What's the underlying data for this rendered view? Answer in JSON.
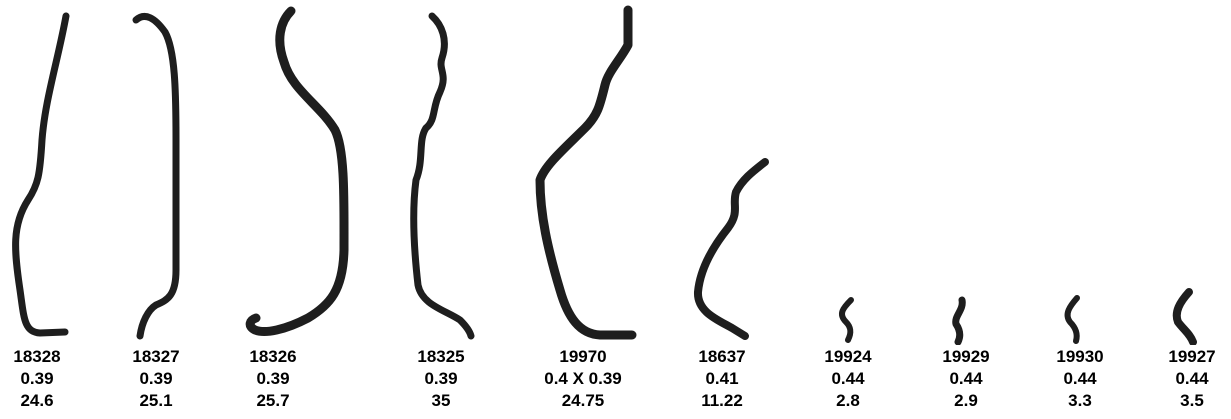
{
  "items": [
    {
      "part": "18328",
      "diameter": "0.39",
      "length": "24.6"
    },
    {
      "part": "18327",
      "diameter": "0.39",
      "length": "25.1"
    },
    {
      "part": "18326",
      "diameter": "0.39",
      "length": "25.7"
    },
    {
      "part": "18325",
      "diameter": "0.39",
      "length": "35"
    },
    {
      "part": "19970",
      "diameter": "0.4 X 0.39",
      "length": "24.75"
    },
    {
      "part": "18637",
      "diameter": "0.41",
      "length": "11.22"
    },
    {
      "part": "19924",
      "diameter": "0.44",
      "length": "2.8"
    },
    {
      "part": "19929",
      "diameter": "0.44",
      "length": "2.9"
    },
    {
      "part": "19930",
      "diameter": "0.44",
      "length": "3.3"
    },
    {
      "part": "19927",
      "diameter": "0.44",
      "length": "3.5"
    }
  ]
}
